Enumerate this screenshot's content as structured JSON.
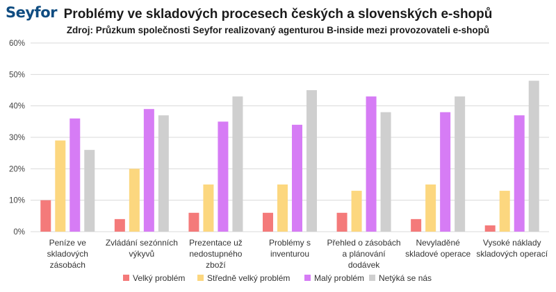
{
  "header": {
    "logo_text": "Seyfor",
    "title": "Problémy ve skladových procesech českých a slovenských e-shopů",
    "subtitle": "Zdroj: Průzkum společnosti Seyfor realizovaný agenturou B-inside mezi provozovateli e-shopů"
  },
  "colors": {
    "series": [
      "#f47a7a",
      "#fcd77f",
      "#d67cf5",
      "#cfcfcf"
    ],
    "grid": "#d9d9d9",
    "logo": "#0f4c81"
  },
  "chart_data": {
    "type": "bar",
    "title": "Problémy ve skladových procesech českých a slovenských e-shopů",
    "subtitle": "Zdroj: Průzkum společnosti Seyfor realizovaný agenturou B-inside mezi provozovateli e-shopů",
    "xlabel": "",
    "ylabel": "",
    "ylim": [
      0,
      60
    ],
    "yticks": [
      "0%",
      "10%",
      "20%",
      "30%",
      "40%",
      "50%",
      "60%"
    ],
    "ytick_values": [
      0,
      10,
      20,
      30,
      40,
      50,
      60
    ],
    "grid": true,
    "legend_position": "bottom",
    "categories": [
      "Peníze ve skladových zásobách",
      "Zvládání sezónních výkyvů",
      "Prezentace už nedostupného zboží",
      "Problémy s inventurou",
      "Přehled o zásobách a plánování dodávek",
      "Nevyladěné skladové operace",
      "Vysoké náklady skladových operací"
    ],
    "category_lines": [
      [
        "Peníze ve",
        "skladových",
        "zásobách"
      ],
      [
        "Zvládání sezónních",
        "výkyvů"
      ],
      [
        "Prezentace už",
        "nedostupného",
        "zboží"
      ],
      [
        "Problémy s",
        "inventurou"
      ],
      [
        "Přehled o zásobách",
        "a plánování",
        "dodávek"
      ],
      [
        "Nevyladěné",
        "skladové operace"
      ],
      [
        "Vysoké náklady",
        "skladových operací"
      ]
    ],
    "series": [
      {
        "name": "Velký problém",
        "values": [
          10,
          4,
          6,
          6,
          6,
          4,
          2
        ]
      },
      {
        "name": "Středně velký problém",
        "values": [
          29,
          20,
          15,
          15,
          13,
          15,
          13
        ]
      },
      {
        "name": "Malý problém",
        "values": [
          36,
          39,
          35,
          34,
          43,
          38,
          37
        ]
      },
      {
        "name": "Netýká se nás",
        "values": [
          26,
          37,
          43,
          45,
          38,
          43,
          48
        ]
      }
    ]
  }
}
